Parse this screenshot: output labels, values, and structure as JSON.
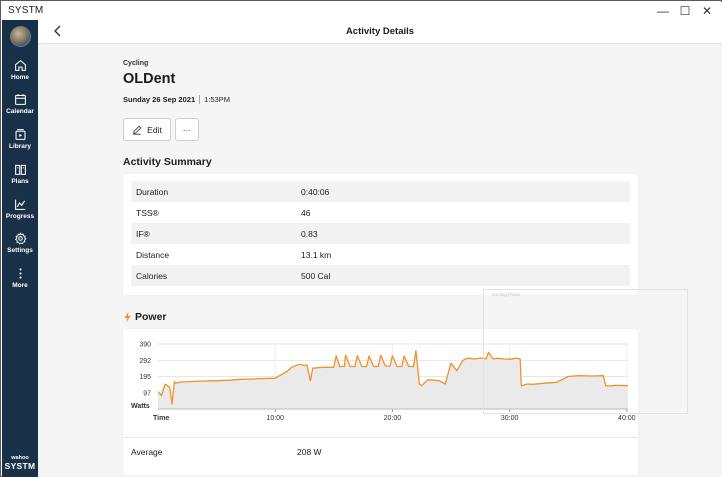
{
  "window": {
    "title": "SYSTM",
    "minimize": "—",
    "maximize": "☐",
    "close": "✕"
  },
  "sidebar": {
    "items": [
      {
        "label": "Home",
        "icon": "home-icon"
      },
      {
        "label": "Calendar",
        "icon": "calendar-icon"
      },
      {
        "label": "Library",
        "icon": "library-icon"
      },
      {
        "label": "Plans",
        "icon": "plans-icon"
      },
      {
        "label": "Progress",
        "icon": "progress-icon"
      },
      {
        "label": "Settings",
        "icon": "gear-icon"
      },
      {
        "label": "More",
        "icon": "more-vertical-icon"
      }
    ],
    "brand_small": "wahoo",
    "brand_big": "SYSTM"
  },
  "header": {
    "title": "Activity Details"
  },
  "activity": {
    "sport": "Cycling",
    "name": "OLDent",
    "date": "Sunday 26 Sep 2021",
    "time": "1:53PM",
    "edit_label": "Edit",
    "more_label": "···"
  },
  "summary": {
    "title": "Activity Summary",
    "rows": [
      {
        "key": "Duration",
        "value": "0:40:06"
      },
      {
        "key": "TSS®",
        "value": "46"
      },
      {
        "key": "IF®",
        "value": "0.83"
      },
      {
        "key": "Distance",
        "value": "13.1 km"
      },
      {
        "key": "Calories",
        "value": "500 Cal"
      }
    ]
  },
  "power": {
    "title": "Power",
    "average_label": "Average",
    "average_value": "208 W"
  },
  "ghost_text": "Cycling Power",
  "colors": {
    "sidebar": "#193148",
    "accent": "#f0922b",
    "background": "#f5f5f5"
  },
  "chart_data": {
    "type": "line",
    "ylabel": "Watts",
    "xlabel": "Time",
    "yticks": [
      97,
      195,
      292,
      390
    ],
    "xticks": [
      "10:00",
      "20:00",
      "30:00",
      "40:00"
    ],
    "xlim": [
      0,
      40.1
    ],
    "ylim": [
      0,
      390
    ],
    "grid": true,
    "series": [
      {
        "x": [
          0,
          0.3,
          0.6,
          1.0,
          1.2,
          1.4,
          1.5,
          2.0,
          3,
          4,
          5,
          6,
          7,
          8,
          9,
          10,
          11,
          11.4,
          11.8,
          12.2,
          12.5,
          12.7,
          13.0,
          13.2,
          14,
          15.0,
          15.2,
          15.5,
          15.9,
          16.0,
          16.4,
          16.8,
          17.0,
          17.4,
          17.8,
          18.0,
          18.4,
          18.8,
          19.0,
          19.4,
          19.8,
          20.0,
          20.4,
          20.8,
          21.0,
          21.4,
          21.8,
          22.0,
          22.3,
          22.5,
          23,
          24,
          24.5,
          25,
          25.5,
          26,
          26.2,
          26.5,
          27,
          27.5,
          28,
          28.2,
          28.6,
          29,
          29.5,
          30,
          30.5,
          30.9,
          31.0,
          31.5,
          32,
          33,
          34,
          35,
          35.5,
          36,
          37,
          38,
          38.2,
          38.5,
          39,
          40.1
        ],
        "y": [
          105,
          80,
          150,
          130,
          30,
          165,
          155,
          162,
          165,
          168,
          170,
          172,
          178,
          180,
          183,
          185,
          225,
          250,
          262,
          268,
          260,
          265,
          170,
          245,
          250,
          250,
          320,
          255,
          255,
          322,
          255,
          255,
          320,
          255,
          255,
          318,
          255,
          255,
          322,
          258,
          258,
          320,
          255,
          255,
          318,
          255,
          255,
          350,
          150,
          140,
          175,
          170,
          150,
          275,
          230,
          290,
          300,
          305,
          300,
          306,
          302,
          340,
          300,
          305,
          300,
          298,
          305,
          300,
          140,
          150,
          148,
          155,
          160,
          195,
          198,
          200,
          198,
          200,
          140,
          138,
          142,
          140
        ]
      }
    ]
  }
}
